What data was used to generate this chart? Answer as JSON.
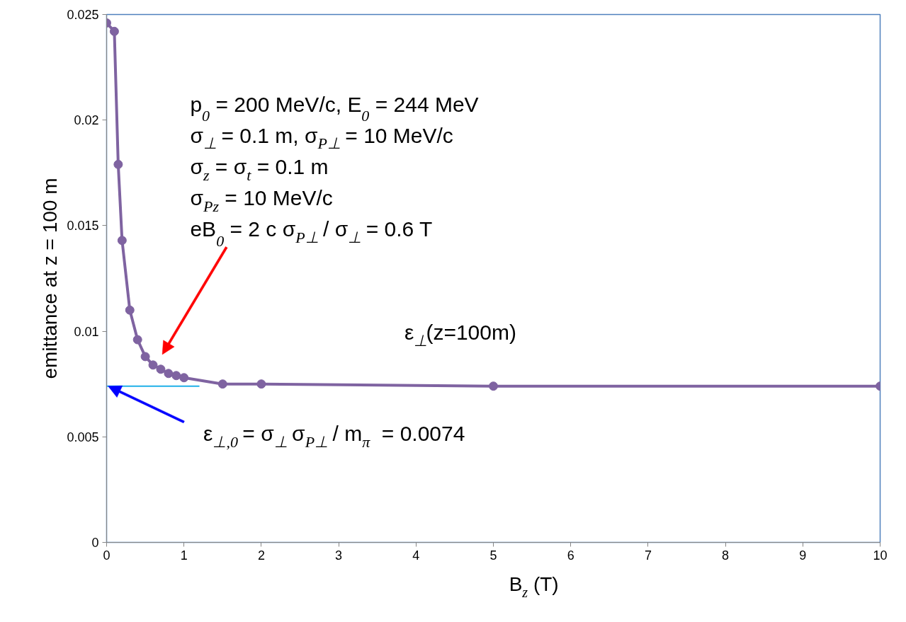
{
  "chart_data": {
    "type": "line",
    "xlabel": "B$_{z}$ (T)",
    "ylabel": "emittance at z = 100 m",
    "xlim": [
      0,
      10
    ],
    "ylim": [
      0,
      0.025
    ],
    "xticks": [
      0,
      1,
      2,
      3,
      4,
      5,
      6,
      7,
      8,
      9,
      10
    ],
    "yticks": [
      0,
      0.005,
      0.01,
      0.015,
      0.02,
      0.025
    ],
    "grid": false,
    "legend": false,
    "marker": "circle",
    "line_style": "solid",
    "series": [
      {
        "name": "ε$_{⊥}$(z=100m)",
        "color": "#7f63a1",
        "x": [
          0,
          0.1,
          0.15,
          0.2,
          0.3,
          0.4,
          0.5,
          0.6,
          0.7,
          0.8,
          0.9,
          1,
          1.5,
          2,
          5,
          10
        ],
        "values": [
          0.0246,
          0.0242,
          0.0179,
          0.0143,
          0.011,
          0.0096,
          0.0088,
          0.0084,
          0.0082,
          0.008,
          0.0079,
          0.0078,
          0.0075,
          0.0075,
          0.0074,
          0.0074
        ]
      },
      {
        "color": "#1fb0e8",
        "x": [
          0,
          1.2
        ],
        "values": [
          0.0074,
          0.0074
        ],
        "marker": "none"
      }
    ],
    "annotations": [
      "p$_{0}$ = 200 MeV/c, E$_{0}$ = 244 MeV",
      "σ$_{⊥}$ = 0.1 m, σ$_{P⊥}$ = 10 MeV/c",
      "σ$_{z}$ = σ$_{t}$ = 0.1 m",
      "σ$_{Pz}$ = 10 MeV/c",
      "eB$_{0}$ = 2 c σ$_{P⊥}$ / σ$_{⊥}$ = 0.6 T",
      "ε$_{⊥,0}$ = σ$_{⊥}$ σ$_{P⊥}$ / m$_{π}$  = 0.0074"
    ]
  }
}
